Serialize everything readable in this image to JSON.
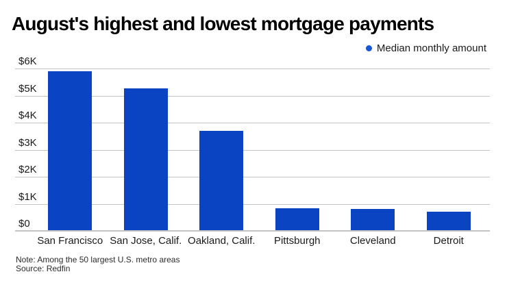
{
  "colors": {
    "bar": "#0a44c2",
    "legend_dot": "#1757d6",
    "grid": "#c3c3c3",
    "axis": "#c3c3c3",
    "title_text": "#000000",
    "tick_text": "#1a1a1a",
    "note_text": "#2a2a2a"
  },
  "chart_data": {
    "type": "bar",
    "title": "August's highest and lowest mortgage payments",
    "series_name": "Median monthly amount",
    "categories": [
      "San Francisco",
      "San Jose, Calif.",
      "Oakland, Calif.",
      "Pittsburgh",
      "Cleveland",
      "Detroit"
    ],
    "values": [
      5920,
      5290,
      3710,
      830,
      780,
      700
    ],
    "xlabel": "",
    "ylabel": "",
    "ylim": [
      0,
      6000
    ],
    "yticks": [
      0,
      1000,
      2000,
      3000,
      4000,
      5000,
      6000
    ],
    "ytick_labels": [
      "$0",
      "$1K",
      "$2K",
      "$3K",
      "$4K",
      "$5K",
      "$6K"
    ],
    "grid": true,
    "legend_position": "top-right",
    "note": "Note: Among the 50 largest U.S. metro areas",
    "source": "Source: Redfin"
  }
}
